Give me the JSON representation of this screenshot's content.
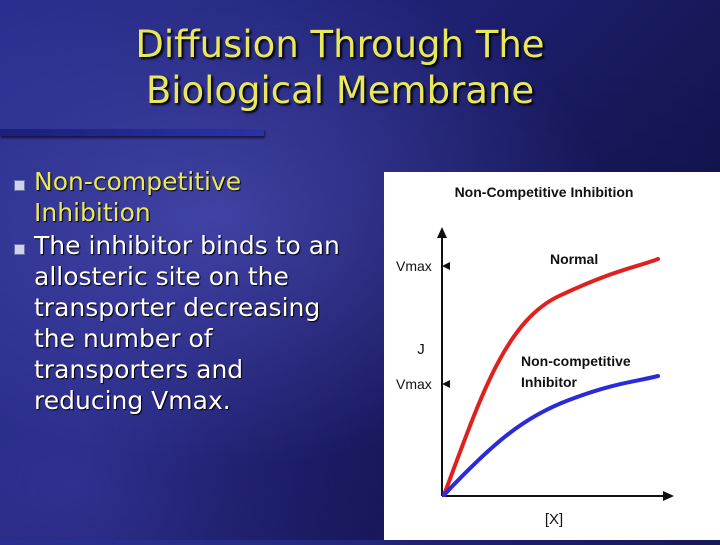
{
  "slide": {
    "title_line1": "Diffusion Through The",
    "title_line2": "Biological Membrane",
    "bullets": [
      {
        "text": "Non-competitive Inhibition"
      },
      {
        "text": "The inhibitor binds to an allosteric site on the transporter decreasing the number of transporters and reducing Vmax."
      }
    ]
  },
  "chart_data": {
    "type": "line",
    "title": "Non-Competitive Inhibition",
    "xlabel": "[X]",
    "ylabel": "J",
    "y_markers": [
      "Vmax",
      "Vmax"
    ],
    "series": [
      {
        "name": "Normal",
        "color": "#e02020"
      },
      {
        "name": "Non-competitive Inhibitor",
        "color": "#2a2ad8"
      }
    ],
    "grid": false
  }
}
